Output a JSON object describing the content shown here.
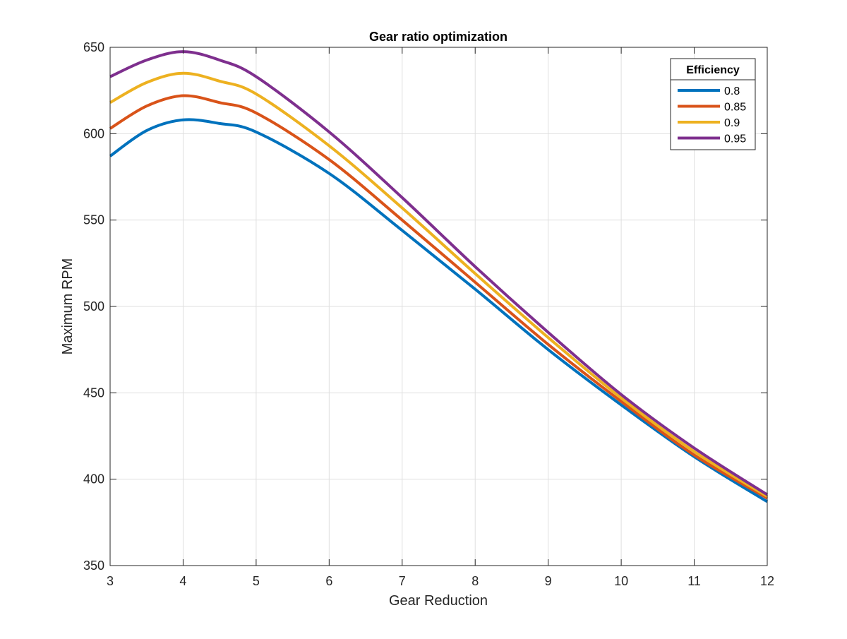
{
  "chart_data": {
    "type": "line",
    "title": "Gear ratio optimization",
    "xlabel": "Gear Reduction",
    "ylabel": "Maximum RPM",
    "xlim": [
      3,
      12
    ],
    "ylim": [
      350,
      650
    ],
    "xticks": [
      3,
      4,
      5,
      6,
      7,
      8,
      9,
      10,
      11,
      12
    ],
    "yticks": [
      350,
      400,
      450,
      500,
      550,
      600,
      650
    ],
    "grid": true,
    "legend": {
      "title": "Efficiency",
      "placement": "top-right"
    },
    "x": [
      3,
      3.5,
      4,
      4.5,
      5,
      6,
      7,
      8,
      9,
      10,
      11,
      12
    ],
    "series": [
      {
        "name": "0.8",
        "color": "#0072BD",
        "values": [
          587,
          601.8,
          608,
          605.9,
          601,
          577,
          544,
          510,
          475,
          443,
          413,
          387
        ]
      },
      {
        "name": "0.85",
        "color": "#D95319",
        "values": [
          603,
          616,
          622,
          618,
          612,
          585,
          550,
          514,
          478,
          445,
          414,
          389
        ]
      },
      {
        "name": "0.9",
        "color": "#EDB120",
        "values": [
          618,
          629.6,
          635,
          630.4,
          623,
          593,
          557,
          519,
          482,
          447,
          416,
          390
        ]
      },
      {
        "name": "0.95",
        "color": "#7E2F8E",
        "values": [
          633,
          642.6,
          647.5,
          642.6,
          633,
          601,
          563,
          523,
          485,
          449,
          418,
          391
        ]
      }
    ]
  }
}
